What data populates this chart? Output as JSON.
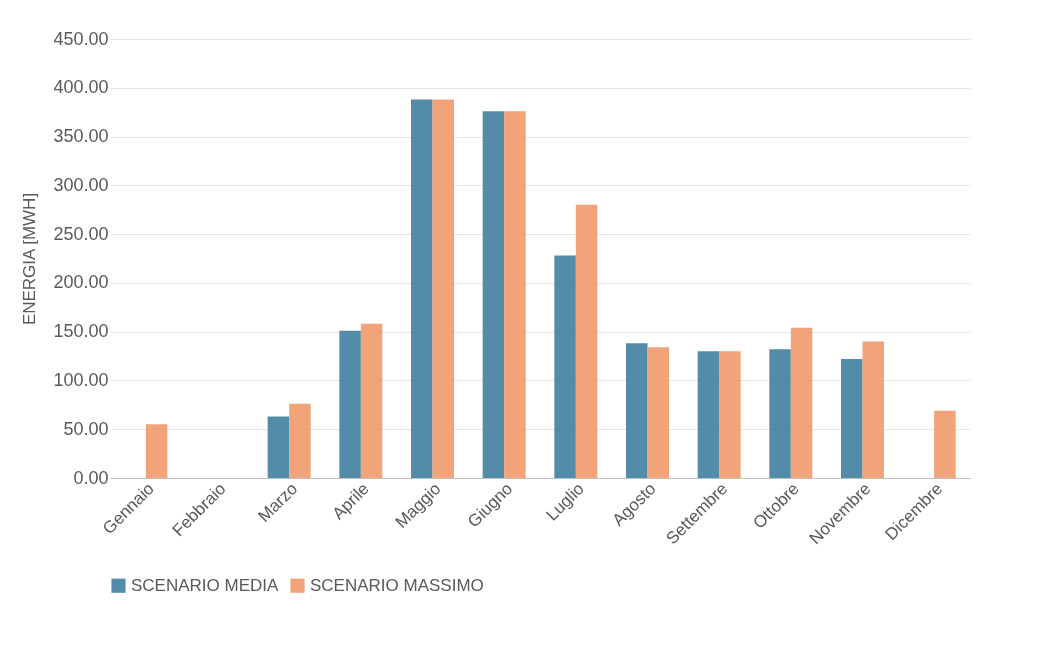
{
  "chart_data": {
    "type": "bar",
    "ylabel": "ENERGIA [MWH]",
    "categories": [
      "Gennaio",
      "Febbraio",
      "Marzo",
      "Aprile",
      "Maggio",
      "Giugno",
      "Luglio",
      "Agosto",
      "Settembre",
      "Ottobre",
      "Novembre",
      "Dicembre"
    ],
    "series": [
      {
        "name": "SCENARIO MEDIA",
        "color": "#3f7f9e",
        "values": [
          0,
          0,
          63,
          151,
          388,
          376,
          228,
          138,
          130,
          132,
          122,
          0
        ]
      },
      {
        "name": "SCENARIO MASSIMO",
        "color": "#f0996a",
        "values": [
          55,
          0,
          76,
          158,
          388,
          376,
          280,
          134,
          130,
          154,
          140,
          69
        ]
      }
    ],
    "ylim": [
      0,
      450
    ],
    "yticks": [
      {
        "value": 0,
        "label": "0.00"
      },
      {
        "value": 50,
        "label": "50.00"
      },
      {
        "value": 100,
        "label": "100.00"
      },
      {
        "value": 150,
        "label": "150.00"
      },
      {
        "value": 200,
        "label": "200.00"
      },
      {
        "value": 250,
        "label": "250.00"
      },
      {
        "value": 300,
        "label": "300.00"
      },
      {
        "value": 350,
        "label": "350.00"
      },
      {
        "value": 400,
        "label": "400.00"
      },
      {
        "value": 450,
        "label": "450.00"
      }
    ],
    "grid": "y",
    "legend": "bottom"
  }
}
